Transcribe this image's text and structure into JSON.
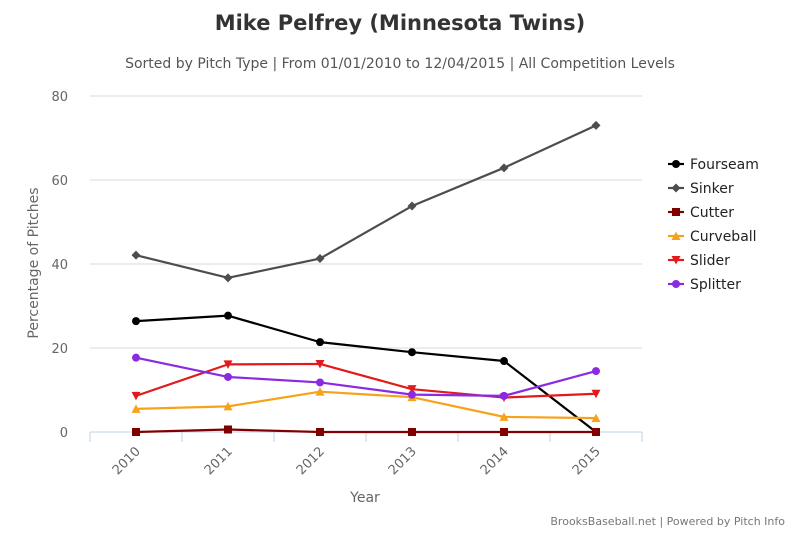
{
  "chart_data": {
    "type": "line",
    "title": "Mike Pelfrey (Minnesota Twins)",
    "subtitle": "Sorted by Pitch Type | From 01/01/2010 to 12/04/2015 | All Competition Levels",
    "xlabel": "Year",
    "ylabel": "Percentage of Pitches",
    "categories": [
      "2010",
      "2011",
      "2012",
      "2013",
      "2014",
      "2015"
    ],
    "ylim": [
      0,
      80
    ],
    "yticks": [
      0,
      20,
      40,
      60,
      80
    ],
    "grid": true,
    "legend_position": "right",
    "series": [
      {
        "name": "Fourseam",
        "color": "#000000",
        "marker": "circle",
        "values": [
          26.4,
          27.7,
          21.4,
          19.0,
          16.9,
          0.0
        ]
      },
      {
        "name": "Sinker",
        "color": "#4d4d4d",
        "marker": "diamond",
        "values": [
          42.1,
          36.7,
          41.3,
          53.8,
          62.9,
          73.0
        ]
      },
      {
        "name": "Cutter",
        "color": "#800000",
        "marker": "square",
        "values": [
          0.0,
          0.6,
          0.0,
          0.0,
          0.0,
          0.0
        ]
      },
      {
        "name": "Curveball",
        "color": "#f7a21b",
        "marker": "triangle-up",
        "values": [
          5.5,
          6.1,
          9.6,
          8.3,
          3.6,
          3.3
        ]
      },
      {
        "name": "Slider",
        "color": "#e31a1c",
        "marker": "triangle-down",
        "values": [
          8.6,
          16.1,
          16.2,
          10.2,
          8.2,
          9.1
        ]
      },
      {
        "name": "Splitter",
        "color": "#8a2be2",
        "marker": "circle",
        "values": [
          17.7,
          13.1,
          11.8,
          8.9,
          8.6,
          14.5
        ]
      }
    ]
  },
  "credit": "BrooksBaseball.net | Powered by Pitch Info"
}
